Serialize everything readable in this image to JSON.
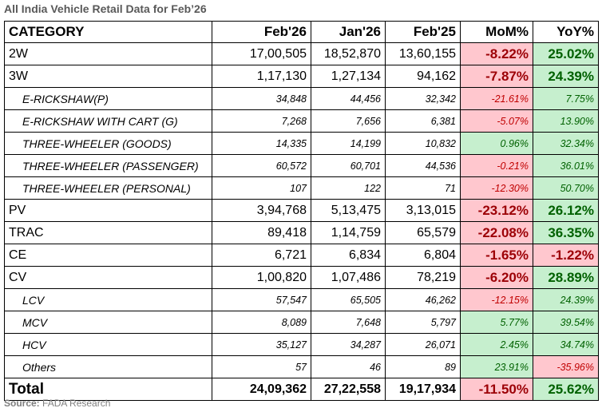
{
  "title": "All India Vehicle Retail Data for Feb’26",
  "headers": [
    "CATEGORY",
    "Feb'26",
    "Jan'26",
    "Feb'25",
    "MoM%",
    "YoY%"
  ],
  "rows": [
    {
      "type": "main",
      "category": "2W",
      "feb26": "17,00,505",
      "jan26": "18,52,870",
      "feb25": "13,60,155",
      "mom": "-8.22%",
      "yoy": "25.02%"
    },
    {
      "type": "main",
      "category": "3W",
      "feb26": "1,17,130",
      "jan26": "1,27,134",
      "feb25": "94,162",
      "mom": "-7.87%",
      "yoy": "24.39%"
    },
    {
      "type": "sub",
      "category": "E-RICKSHAW(P)",
      "feb26": "34,848",
      "jan26": "44,456",
      "feb25": "32,342",
      "mom": "-21.61%",
      "yoy": "7.75%"
    },
    {
      "type": "sub",
      "category": "E-RICKSHAW WITH CART (G)",
      "feb26": "7,268",
      "jan26": "7,656",
      "feb25": "6,381",
      "mom": "-5.07%",
      "yoy": "13.90%"
    },
    {
      "type": "sub",
      "category": "THREE-WHEELER (GOODS)",
      "feb26": "14,335",
      "jan26": "14,199",
      "feb25": "10,832",
      "mom": "0.96%",
      "yoy": "32.34%"
    },
    {
      "type": "sub",
      "category": "THREE-WHEELER (PASSENGER)",
      "feb26": "60,572",
      "jan26": "60,701",
      "feb25": "44,536",
      "mom": "-0.21%",
      "yoy": "36.01%"
    },
    {
      "type": "sub",
      "category": "THREE-WHEELER (PERSONAL)",
      "feb26": "107",
      "jan26": "122",
      "feb25": "71",
      "mom": "-12.30%",
      "yoy": "50.70%"
    },
    {
      "type": "main",
      "category": "PV",
      "feb26": "3,94,768",
      "jan26": "5,13,475",
      "feb25": "3,13,015",
      "mom": "-23.12%",
      "yoy": "26.12%"
    },
    {
      "type": "main",
      "category": "TRAC",
      "feb26": "89,418",
      "jan26": "1,14,759",
      "feb25": "65,579",
      "mom": "-22.08%",
      "yoy": "36.35%"
    },
    {
      "type": "main",
      "category": "CE",
      "feb26": "6,721",
      "jan26": "6,834",
      "feb25": "6,804",
      "mom": "-1.65%",
      "yoy": "-1.22%"
    },
    {
      "type": "main",
      "category": "CV",
      "feb26": "1,00,820",
      "jan26": "1,07,486",
      "feb25": "78,219",
      "mom": "-6.20%",
      "yoy": "28.89%"
    },
    {
      "type": "sub",
      "category": "LCV",
      "feb26": "57,547",
      "jan26": "65,505",
      "feb25": "46,262",
      "mom": "-12.15%",
      "yoy": "24.39%"
    },
    {
      "type": "sub",
      "category": "MCV",
      "feb26": "8,089",
      "jan26": "7,648",
      "feb25": "5,797",
      "mom": "5.77%",
      "yoy": "39.54%"
    },
    {
      "type": "sub",
      "category": "HCV",
      "feb26": "35,127",
      "jan26": "34,287",
      "feb25": "26,071",
      "mom": "2.45%",
      "yoy": "34.74%"
    },
    {
      "type": "sub",
      "category": "Others",
      "feb26": "57",
      "jan26": "46",
      "feb25": "89",
      "mom": "23.91%",
      "yoy": "-35.96%"
    },
    {
      "type": "total",
      "category": "Total",
      "feb26": "24,09,362",
      "jan26": "27,22,558",
      "feb25": "19,17,934",
      "mom": "-11.50%",
      "yoy": "25.62%"
    }
  ],
  "source": {
    "label": "Source:",
    "text": " FADA Research"
  },
  "colors": {
    "neg_bg": "#ffc7ce",
    "neg_text": "#9c0006",
    "pos_bg": "#c6efce",
    "pos_text": "#006100"
  }
}
